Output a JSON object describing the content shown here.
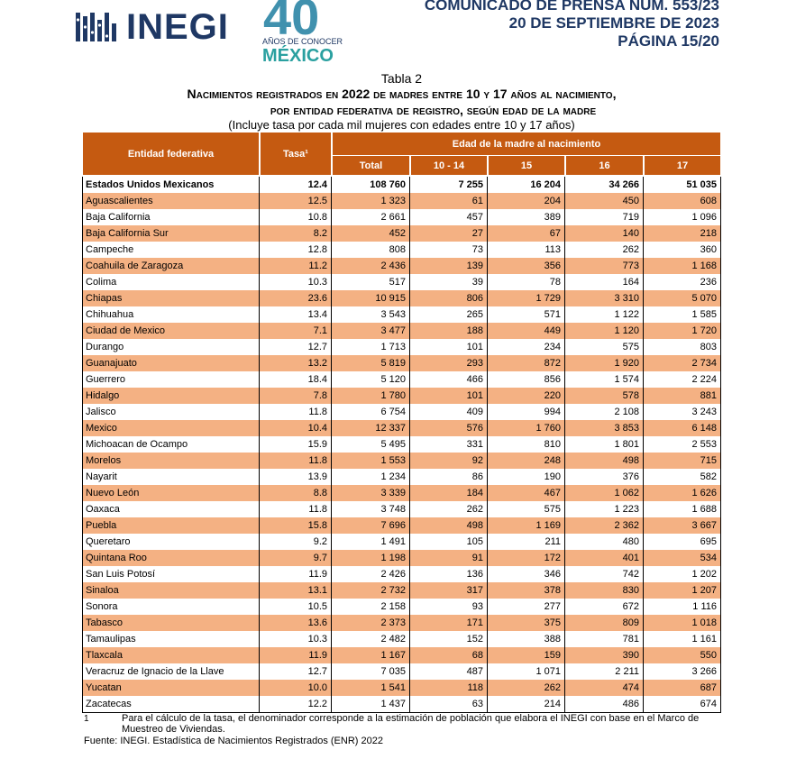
{
  "header": {
    "logo": {
      "name": "INEGI",
      "number": "40",
      "line1": "AÑOS DE CONOCER",
      "line2": "MÉXICO"
    },
    "lines": [
      "COMUNICADO DE PRENSA NÚM. 553/23",
      "20 DE SEPTIEMBRE DE 2023",
      "PÁGINA 15/20"
    ]
  },
  "table": {
    "label": "Tabla 2",
    "title1": "Nacimientos registrados en 2022 de madres entre 10 y 17 años al nacimiento,",
    "title2": "por entidad federativa de registro, según edad de la madre",
    "subtitle": "(Incluye tasa por cada mil mujeres con edades entre 10 y 17 años)",
    "columns": {
      "entity": "Entidad federativa",
      "rate": "Tasa¹",
      "group": "Edad de la madre al nacimiento",
      "ages": [
        "Total",
        "10 - 14",
        "15",
        "16",
        "17"
      ]
    },
    "total": [
      "Estados Unidos Mexicanos",
      "12.4",
      "108 760",
      "7 255",
      "16 204",
      "34 266",
      "51 035"
    ],
    "rows": [
      [
        "Aguascalientes",
        "12.5",
        "1 323",
        "61",
        "204",
        "450",
        "608"
      ],
      [
        "Baja California",
        "10.8",
        "2 661",
        "457",
        "389",
        "719",
        "1 096"
      ],
      [
        "Baja California Sur",
        "8.2",
        "452",
        "27",
        "67",
        "140",
        "218"
      ],
      [
        "Campeche",
        "12.8",
        "808",
        "73",
        "113",
        "262",
        "360"
      ],
      [
        "Coahuila de Zaragoza",
        "11.2",
        "2 436",
        "139",
        "356",
        "773",
        "1 168"
      ],
      [
        "Colima",
        "10.3",
        "517",
        "39",
        "78",
        "164",
        "236"
      ],
      [
        "Chiapas",
        "23.6",
        "10 915",
        "806",
        "1 729",
        "3 310",
        "5 070"
      ],
      [
        "Chihuahua",
        "13.4",
        "3 543",
        "265",
        "571",
        "1 122",
        "1 585"
      ],
      [
        "Ciudad de Mexico",
        "7.1",
        "3 477",
        "188",
        "449",
        "1 120",
        "1 720"
      ],
      [
        "Durango",
        "12.7",
        "1 713",
        "101",
        "234",
        "575",
        "803"
      ],
      [
        "Guanajuato",
        "13.2",
        "5 819",
        "293",
        "872",
        "1 920",
        "2 734"
      ],
      [
        "Guerrero",
        "18.4",
        "5 120",
        "466",
        "856",
        "1 574",
        "2 224"
      ],
      [
        "Hidalgo",
        "7.8",
        "1 780",
        "101",
        "220",
        "578",
        "881"
      ],
      [
        "Jalisco",
        "11.8",
        "6 754",
        "409",
        "994",
        "2 108",
        "3 243"
      ],
      [
        "Mexico",
        "10.4",
        "12 337",
        "576",
        "1 760",
        "3 853",
        "6 148"
      ],
      [
        "Michoacan de Ocampo",
        "15.9",
        "5 495",
        "331",
        "810",
        "1 801",
        "2 553"
      ],
      [
        "Morelos",
        "11.8",
        "1 553",
        "92",
        "248",
        "498",
        "715"
      ],
      [
        "Nayarit",
        "13.9",
        "1 234",
        "86",
        "190",
        "376",
        "582"
      ],
      [
        "Nuevo León",
        "8.8",
        "3 339",
        "184",
        "467",
        "1 062",
        "1 626"
      ],
      [
        "Oaxaca",
        "11.8",
        "3 748",
        "262",
        "575",
        "1 223",
        "1 688"
      ],
      [
        "Puebla",
        "15.8",
        "7 696",
        "498",
        "1 169",
        "2 362",
        "3 667"
      ],
      [
        "Queretaro",
        "9.2",
        "1 491",
        "105",
        "211",
        "480",
        "695"
      ],
      [
        "Quintana Roo",
        "9.7",
        "1 198",
        "91",
        "172",
        "401",
        "534"
      ],
      [
        "San Luis Potosí",
        "11.9",
        "2 426",
        "136",
        "346",
        "742",
        "1 202"
      ],
      [
        "Sinaloa",
        "13.1",
        "2 732",
        "317",
        "378",
        "830",
        "1 207"
      ],
      [
        "Sonora",
        "10.5",
        "2 158",
        "93",
        "277",
        "672",
        "1 116"
      ],
      [
        "Tabasco",
        "13.6",
        "2 373",
        "171",
        "375",
        "809",
        "1 018"
      ],
      [
        "Tamaulipas",
        "10.3",
        "2 482",
        "152",
        "388",
        "781",
        "1 161"
      ],
      [
        "Tlaxcala",
        "11.9",
        "1 167",
        "68",
        "159",
        "390",
        "550"
      ],
      [
        "Veracruz de Ignacio de la Llave",
        "12.7",
        "7 035",
        "487",
        "1 071",
        "2 211",
        "3 266"
      ],
      [
        "Yucatan",
        "10.0",
        "1 541",
        "118",
        "262",
        "474",
        "687"
      ],
      [
        "Zacatecas",
        "12.2",
        "1 437",
        "63",
        "214",
        "486",
        "674"
      ]
    ],
    "footnote_mark": "1",
    "footnote": "Para el cálculo de la tasa, el denominador corresponde a la estimación de población que elabora el INEGI con base en el Marco de Muestreo de Viviendas.",
    "source": "Fuente: INEGI. Estadística de Nacimientos Registrados (ENR) 2022"
  }
}
